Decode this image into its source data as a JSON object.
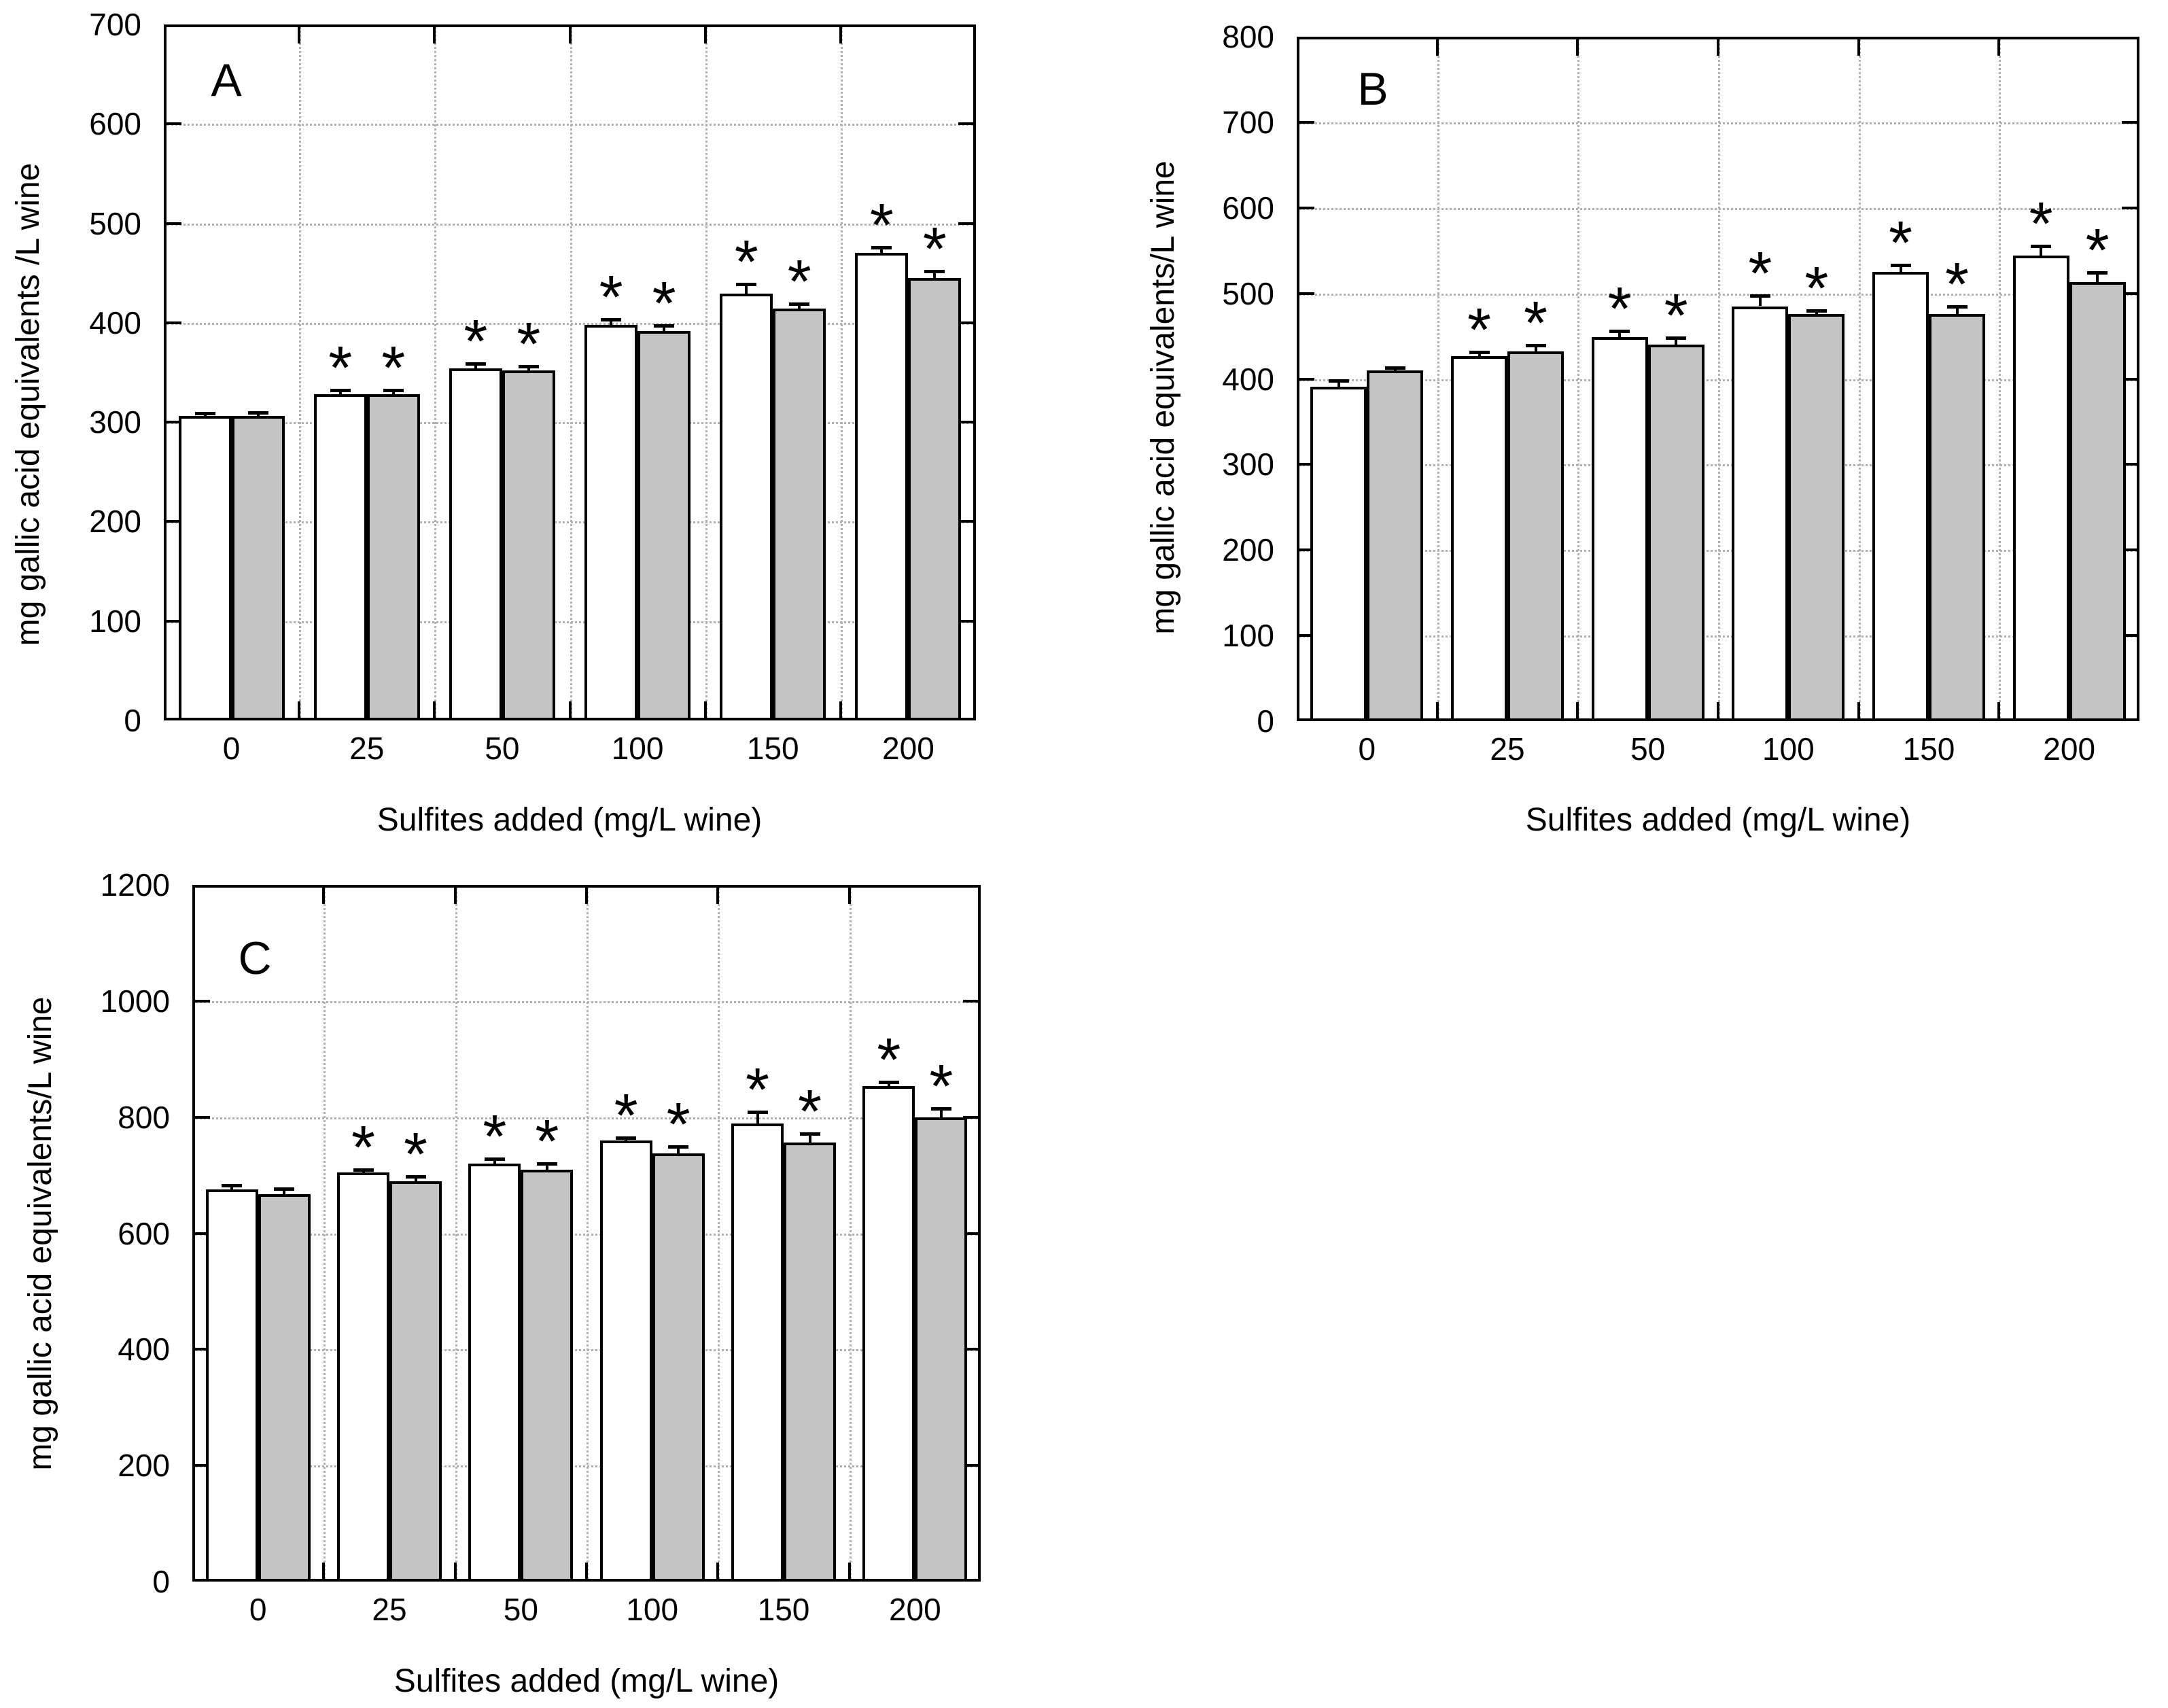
{
  "figure": {
    "background": "#ffffff",
    "x_axis_title": "Sulfites added (mg/L wine)",
    "significance_marker": "*",
    "bar_fill_white": "#ffffff",
    "bar_fill_gray": "#c4c4c4",
    "border_color": "#000000",
    "grid_color": "#b0b0b0"
  },
  "chart_data": [
    {
      "type": "bar",
      "panel": "A",
      "title": "A",
      "xlabel": "Sulfites added (mg/L wine)",
      "ylabel": "mg gallic acid equivalents /L wine",
      "categories": [
        "0",
        "25",
        "50",
        "100",
        "150",
        "200"
      ],
      "ylim": [
        0,
        700
      ],
      "ytick_step": 100,
      "ytick_labels": [
        "0",
        "100",
        "200",
        "300",
        "400",
        "500",
        "600",
        "700"
      ],
      "grid": true,
      "legend_position": "none",
      "series": [
        {
          "name": "white bars",
          "fill": "#ffffff",
          "values": [
            306,
            328,
            354,
            398,
            429,
            470
          ],
          "errors": [
            3,
            4,
            5,
            5,
            10,
            6
          ],
          "significant": [
            false,
            true,
            true,
            true,
            true,
            true
          ]
        },
        {
          "name": "gray bars",
          "fill": "#c4c4c4",
          "values": [
            306,
            328,
            352,
            392,
            414,
            445
          ],
          "errors": [
            4,
            4,
            4,
            5,
            5,
            7
          ],
          "significant": [
            false,
            true,
            true,
            true,
            true,
            true
          ]
        }
      ]
    },
    {
      "type": "bar",
      "panel": "B",
      "title": "B",
      "xlabel": "Sulfites added (mg/L wine)",
      "ylabel": "mg gallic acid equivalents/L wine",
      "categories": [
        "0",
        "25",
        "50",
        "100",
        "150",
        "200"
      ],
      "ylim": [
        0,
        800
      ],
      "ytick_step": 100,
      "ytick_labels": [
        "0",
        "100",
        "200",
        "300",
        "400",
        "500",
        "600",
        "700",
        "800"
      ],
      "grid": true,
      "legend_position": "none",
      "series": [
        {
          "name": "white bars",
          "fill": "#ffffff",
          "values": [
            391,
            427,
            449,
            485,
            525,
            544
          ],
          "errors": [
            7,
            4,
            7,
            12,
            8,
            11
          ],
          "significant": [
            false,
            true,
            true,
            true,
            true,
            true
          ]
        },
        {
          "name": "gray bars",
          "fill": "#c4c4c4",
          "values": [
            410,
            432,
            440,
            476,
            476,
            513
          ],
          "errors": [
            3,
            7,
            8,
            4,
            9,
            11
          ],
          "significant": [
            false,
            true,
            true,
            true,
            true,
            true
          ]
        }
      ]
    },
    {
      "type": "bar",
      "panel": "C",
      "title": "C",
      "xlabel": "Sulfites added (mg/L wine)",
      "ylabel": "mg gallic acid equivalents/L wine",
      "categories": [
        "0",
        "25",
        "50",
        "100",
        "150",
        "200"
      ],
      "ylim": [
        0,
        1200
      ],
      "ytick_step": 200,
      "ytick_labels": [
        "0",
        "200",
        "400",
        "600",
        "800",
        "1000",
        "1200"
      ],
      "grid": true,
      "legend_position": "none",
      "series": [
        {
          "name": "white bars",
          "fill": "#ffffff",
          "values": [
            675,
            705,
            720,
            760,
            789,
            853
          ],
          "errors": [
            8,
            5,
            8,
            5,
            20,
            7
          ],
          "significant": [
            false,
            true,
            true,
            true,
            true,
            true
          ]
        },
        {
          "name": "gray bars",
          "fill": "#c4c4c4",
          "values": [
            667,
            690,
            710,
            737,
            756,
            800
          ],
          "errors": [
            10,
            8,
            10,
            12,
            15,
            15
          ],
          "significant": [
            false,
            true,
            true,
            true,
            true,
            true
          ]
        }
      ]
    }
  ]
}
